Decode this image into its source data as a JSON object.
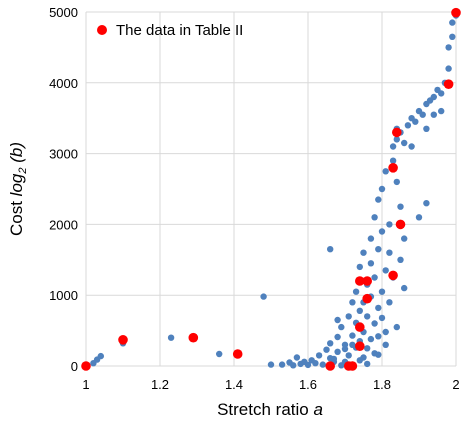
{
  "chart_data": {
    "type": "scatter",
    "xlabel": {
      "main": "Stretch ratio ",
      "var": "a"
    },
    "ylabel": {
      "main": "Cost ",
      "var": "log",
      "sub": "2",
      "arg": " (b)"
    },
    "xlim": [
      1,
      2
    ],
    "ylim": [
      0,
      5000
    ],
    "x_ticks": [
      "1",
      "1.2",
      "1.4",
      "1.6",
      "1.8",
      "2"
    ],
    "y_ticks": [
      "0",
      "1000",
      "2000",
      "3000",
      "4000",
      "5000"
    ],
    "grid": true,
    "legend_position": "top-left",
    "series": [
      {
        "name": "",
        "color": "#4F81BD",
        "points": [
          [
            1.02,
            40
          ],
          [
            1.03,
            90
          ],
          [
            1.04,
            140
          ],
          [
            1.1,
            320
          ],
          [
            1.23,
            400
          ],
          [
            1.36,
            170
          ],
          [
            1.48,
            980
          ],
          [
            1.5,
            20
          ],
          [
            1.53,
            20
          ],
          [
            1.55,
            50
          ],
          [
            1.56,
            10
          ],
          [
            1.57,
            120
          ],
          [
            1.58,
            30
          ],
          [
            1.59,
            60
          ],
          [
            1.6,
            15
          ],
          [
            1.61,
            80
          ],
          [
            1.62,
            40
          ],
          [
            1.63,
            150
          ],
          [
            1.64,
            20
          ],
          [
            1.65,
            230
          ],
          [
            1.66,
            1650
          ],
          [
            1.66,
            320
          ],
          [
            1.67,
            60
          ],
          [
            1.67,
            100
          ],
          [
            1.68,
            410
          ],
          [
            1.68,
            200
          ],
          [
            1.69,
            10
          ],
          [
            1.69,
            550
          ],
          [
            1.7,
            300
          ],
          [
            1.7,
            60
          ],
          [
            1.71,
            700
          ],
          [
            1.71,
            150
          ],
          [
            1.72,
            430
          ],
          [
            1.72,
            900
          ],
          [
            1.72,
            20
          ],
          [
            1.73,
            260
          ],
          [
            1.73,
            1050
          ],
          [
            1.73,
            610
          ],
          [
            1.74,
            350
          ],
          [
            1.74,
            1400
          ],
          [
            1.74,
            780
          ],
          [
            1.75,
            120
          ],
          [
            1.75,
            900
          ],
          [
            1.75,
            1600
          ],
          [
            1.75,
            480
          ],
          [
            1.76,
            250
          ],
          [
            1.76,
            1150
          ],
          [
            1.76,
            700
          ],
          [
            1.77,
            1450
          ],
          [
            1.77,
            380
          ],
          [
            1.77,
            1800
          ],
          [
            1.77,
            980
          ],
          [
            1.78,
            600
          ],
          [
            1.78,
            1250
          ],
          [
            1.78,
            2100
          ],
          [
            1.78,
            180
          ],
          [
            1.79,
            820
          ],
          [
            1.79,
            1650
          ],
          [
            1.79,
            2350
          ],
          [
            1.79,
            420
          ],
          [
            1.8,
            1050
          ],
          [
            1.8,
            2500
          ],
          [
            1.8,
            1900
          ],
          [
            1.8,
            680
          ],
          [
            1.81,
            1350
          ],
          [
            1.81,
            2750
          ],
          [
            1.81,
            300
          ],
          [
            1.82,
            2000
          ],
          [
            1.82,
            1600
          ],
          [
            1.82,
            900
          ],
          [
            1.83,
            2900
          ],
          [
            1.83,
            3100
          ],
          [
            1.83,
            1250
          ],
          [
            1.84,
            3200
          ],
          [
            1.84,
            2600
          ],
          [
            1.84,
            3350
          ],
          [
            1.85,
            1500
          ],
          [
            1.85,
            2250
          ],
          [
            1.85,
            3300
          ],
          [
            1.86,
            1800
          ],
          [
            1.86,
            3150
          ],
          [
            1.87,
            3400
          ],
          [
            1.88,
            3500
          ],
          [
            1.89,
            3450
          ],
          [
            1.9,
            3600
          ],
          [
            1.9,
            2100
          ],
          [
            1.91,
            3550
          ],
          [
            1.92,
            3700
          ],
          [
            1.92,
            2300
          ],
          [
            1.93,
            3750
          ],
          [
            1.94,
            3800
          ],
          [
            1.95,
            3900
          ],
          [
            1.96,
            3850
          ],
          [
            1.97,
            4000
          ],
          [
            1.98,
            4200
          ],
          [
            1.98,
            4500
          ],
          [
            1.99,
            4650
          ],
          [
            1.99,
            4850
          ],
          [
            2.0,
            4950
          ],
          [
            1.96,
            3600
          ],
          [
            1.94,
            3550
          ],
          [
            1.92,
            3350
          ],
          [
            1.88,
            3100
          ],
          [
            1.86,
            1100
          ],
          [
            1.84,
            550
          ],
          [
            1.81,
            480
          ],
          [
            1.79,
            160
          ],
          [
            1.76,
            30
          ],
          [
            1.74,
            80
          ],
          [
            1.72,
            300
          ],
          [
            1.7,
            240
          ],
          [
            1.68,
            650
          ],
          [
            1.66,
            110
          ]
        ]
      },
      {
        "name": "The data in Table II",
        "color": "#FF0000",
        "points": [
          [
            1.0,
            0
          ],
          [
            1.1,
            370
          ],
          [
            1.29,
            400
          ],
          [
            1.41,
            170
          ],
          [
            1.66,
            0
          ],
          [
            1.71,
            0
          ],
          [
            1.72,
            0
          ],
          [
            1.74,
            280
          ],
          [
            1.74,
            550
          ],
          [
            1.74,
            1200
          ],
          [
            1.76,
            950
          ],
          [
            1.76,
            1200
          ],
          [
            1.83,
            1280
          ],
          [
            1.83,
            2800
          ],
          [
            1.84,
            3300
          ],
          [
            1.85,
            2000
          ],
          [
            1.98,
            3980
          ],
          [
            2.0,
            4990
          ]
        ]
      }
    ]
  }
}
